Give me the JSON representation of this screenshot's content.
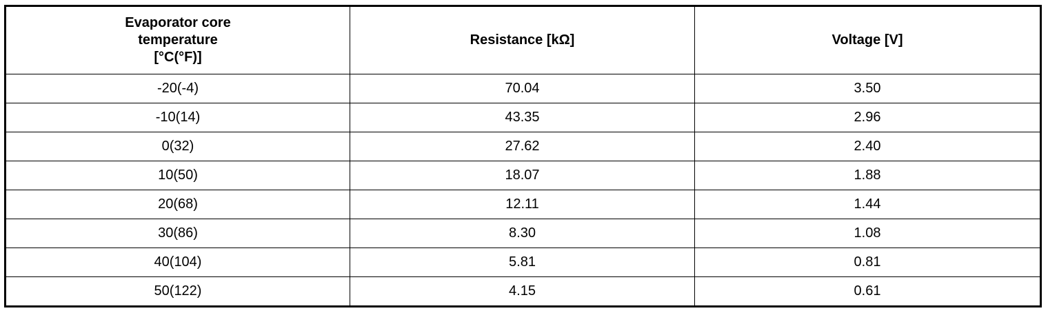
{
  "table": {
    "header": [
      "Evaporator core\ntemperature\n[°C(°F)]",
      "Resistance [kΩ]",
      "Voltage [V]"
    ],
    "rows": [
      [
        "-20(-4)",
        "70.04",
        "3.50"
      ],
      [
        "-10(14)",
        "43.35",
        "2.96"
      ],
      [
        "0(32)",
        "27.62",
        "2.40"
      ],
      [
        "10(50)",
        "18.07",
        "1.88"
      ],
      [
        "20(68)",
        "12.11",
        "1.44"
      ],
      [
        "30(86)",
        "8.30",
        "1.08"
      ],
      [
        "40(104)",
        "5.81",
        "0.81"
      ],
      [
        "50(122)",
        "4.15",
        "0.61"
      ]
    ]
  }
}
